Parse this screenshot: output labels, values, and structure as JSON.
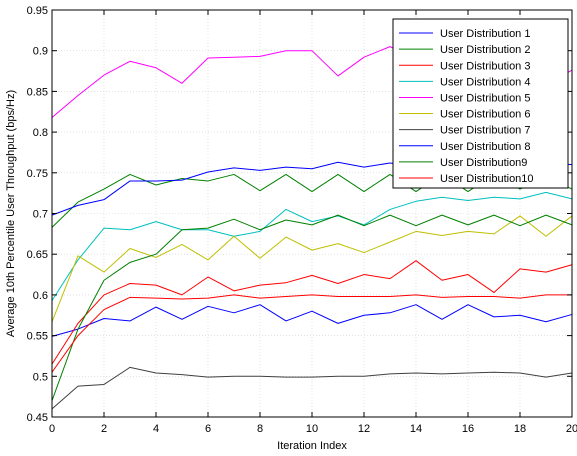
{
  "chart_data": {
    "type": "line",
    "title": "",
    "xlabel": "Iteration Index",
    "ylabel": "Average 10th Percentile User Throughput (bps/Hz)",
    "xlim": [
      0,
      20
    ],
    "ylim": [
      0.45,
      0.95
    ],
    "xticks": [
      0,
      2,
      4,
      6,
      8,
      10,
      12,
      14,
      16,
      18,
      20
    ],
    "xtick_labels": [
      "0",
      "2",
      "4",
      "6",
      "8",
      "10",
      "12",
      "14",
      "16",
      "18",
      "20"
    ],
    "yticks": [
      0.45,
      0.5,
      0.55,
      0.6,
      0.65,
      0.7,
      0.75,
      0.8,
      0.85,
      0.9,
      0.95
    ],
    "ytick_labels": [
      "0.45",
      "0.5",
      "0.55",
      "0.6",
      "0.65",
      "0.7",
      "0.75",
      "0.8",
      "0.85",
      "0.9",
      "0.95"
    ],
    "grid": true,
    "legend_position": "top-right",
    "x": [
      0,
      1,
      2,
      3,
      4,
      5,
      6,
      7,
      8,
      9,
      10,
      11,
      12,
      13,
      14,
      15,
      16,
      17,
      18,
      19,
      20
    ],
    "series": [
      {
        "name": "User Distribution 1",
        "color": "#0000ff",
        "values": [
          0.549,
          0.558,
          0.571,
          0.568,
          0.585,
          0.57,
          0.586,
          0.578,
          0.588,
          0.568,
          0.58,
          0.565,
          0.575,
          0.578,
          0.588,
          0.57,
          0.588,
          0.573,
          0.575,
          0.567,
          0.576
        ]
      },
      {
        "name": "User Distribution 2",
        "color": "#008000",
        "values": [
          0.683,
          0.714,
          0.73,
          0.748,
          0.735,
          0.743,
          0.74,
          0.748,
          0.728,
          0.748,
          0.727,
          0.748,
          0.727,
          0.748,
          0.727,
          0.748,
          0.727,
          0.748,
          0.73,
          0.745,
          0.73
        ]
      },
      {
        "name": "User Distribution 3",
        "color": "#ff0000",
        "values": [
          0.515,
          0.565,
          0.6,
          0.614,
          0.612,
          0.6,
          0.622,
          0.605,
          0.612,
          0.615,
          0.624,
          0.614,
          0.625,
          0.62,
          0.642,
          0.618,
          0.625,
          0.603,
          0.632,
          0.628,
          0.637
        ]
      },
      {
        "name": "User Distribution 4",
        "color": "#00bfbf",
        "values": [
          0.593,
          0.643,
          0.682,
          0.68,
          0.69,
          0.68,
          0.68,
          0.672,
          0.678,
          0.705,
          0.69,
          0.697,
          0.686,
          0.705,
          0.715,
          0.72,
          0.716,
          0.72,
          0.718,
          0.726,
          0.718
        ]
      },
      {
        "name": "User Distribution 5",
        "color": "#ff00ff",
        "values": [
          0.818,
          0.845,
          0.87,
          0.887,
          0.879,
          0.86,
          0.891,
          0.892,
          0.893,
          0.9,
          0.9,
          0.869,
          0.892,
          0.905,
          0.89,
          0.88,
          0.885,
          0.87,
          0.88,
          0.859,
          0.876
        ]
      },
      {
        "name": "User Distribution 6",
        "color": "#bfbf00",
        "values": [
          0.567,
          0.648,
          0.628,
          0.657,
          0.646,
          0.662,
          0.643,
          0.672,
          0.645,
          0.671,
          0.655,
          0.663,
          0.652,
          0.665,
          0.678,
          0.673,
          0.678,
          0.675,
          0.697,
          0.672,
          0.697
        ]
      },
      {
        "name": "User Distribution 7",
        "color": "#404040",
        "values": [
          0.46,
          0.488,
          0.49,
          0.511,
          0.504,
          0.502,
          0.499,
          0.5,
          0.5,
          0.499,
          0.499,
          0.5,
          0.5,
          0.503,
          0.504,
          0.503,
          0.504,
          0.505,
          0.504,
          0.499,
          0.504
        ]
      },
      {
        "name": "User Distribution 8",
        "color": "#0000ff",
        "values": [
          0.698,
          0.71,
          0.717,
          0.74,
          0.74,
          0.741,
          0.751,
          0.756,
          0.753,
          0.757,
          0.755,
          0.763,
          0.757,
          0.762,
          0.758,
          0.76,
          0.757,
          0.765,
          0.76,
          0.762,
          0.76
        ]
      },
      {
        "name": "User Distribution9",
        "color": "#008000",
        "values": [
          0.47,
          0.558,
          0.618,
          0.64,
          0.65,
          0.68,
          0.682,
          0.693,
          0.68,
          0.692,
          0.686,
          0.698,
          0.685,
          0.698,
          0.685,
          0.698,
          0.686,
          0.698,
          0.685,
          0.698,
          0.686
        ]
      },
      {
        "name": "User Distribution10",
        "color": "#ff0000",
        "values": [
          0.505,
          0.55,
          0.582,
          0.597,
          0.596,
          0.595,
          0.596,
          0.6,
          0.596,
          0.598,
          0.6,
          0.598,
          0.598,
          0.598,
          0.6,
          0.597,
          0.598,
          0.598,
          0.596,
          0.6,
          0.6
        ]
      }
    ]
  }
}
